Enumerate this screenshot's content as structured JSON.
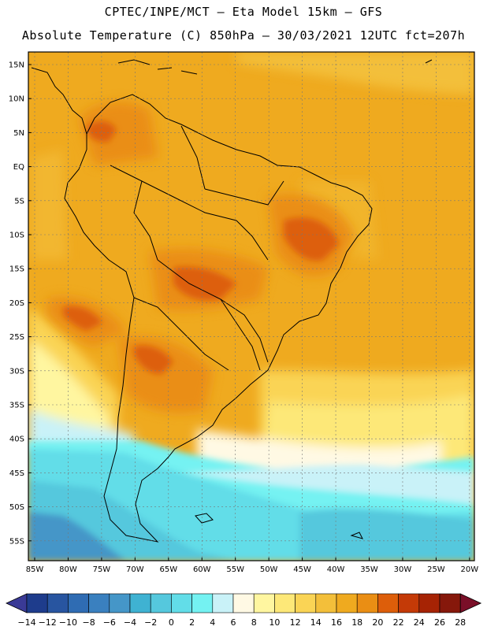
{
  "header": {
    "line1": "CPTEC/INPE/MCT –  Eta Model 15km – GFS",
    "line2": "Absolute Temperature (C) 850hPa – 30/03/2021 12UTC fct=207h"
  },
  "map": {
    "lat_labels": [
      "15N",
      "10N",
      "5N",
      "EQ",
      "5S",
      "10S",
      "15S",
      "20S",
      "25S",
      "30S",
      "35S",
      "40S",
      "45S",
      "50S",
      "55S"
    ],
    "lon_labels": [
      "85W",
      "80W",
      "75W",
      "70W",
      "65W",
      "60W",
      "55W",
      "50W",
      "45W",
      "40W",
      "35W",
      "30W",
      "25W",
      "20W"
    ]
  },
  "colorbar": {
    "labels": [
      "-14",
      "-12",
      "-10",
      "-8",
      "-6",
      "-4",
      "-2",
      "0",
      "2",
      "4",
      "6",
      "8",
      "10",
      "12",
      "14",
      "16",
      "18",
      "20",
      "22",
      "24",
      "26",
      "28"
    ],
    "colors": [
      "#1e3c8c",
      "#2855a0",
      "#2f6cb3",
      "#3a80bf",
      "#4596c8",
      "#3fb2d2",
      "#55c8dd",
      "#62dde8",
      "#74f2f2",
      "#c9f2f8",
      "#fff9e4",
      "#fff6a0",
      "#fde878",
      "#fad455",
      "#f3bf3a",
      "#efaa1f",
      "#ea8e14",
      "#dd5e0a",
      "#c43a07",
      "#a62304",
      "#86180b"
    ],
    "under_color": "#3a3a96",
    "over_color": "#7a0f28"
  }
}
